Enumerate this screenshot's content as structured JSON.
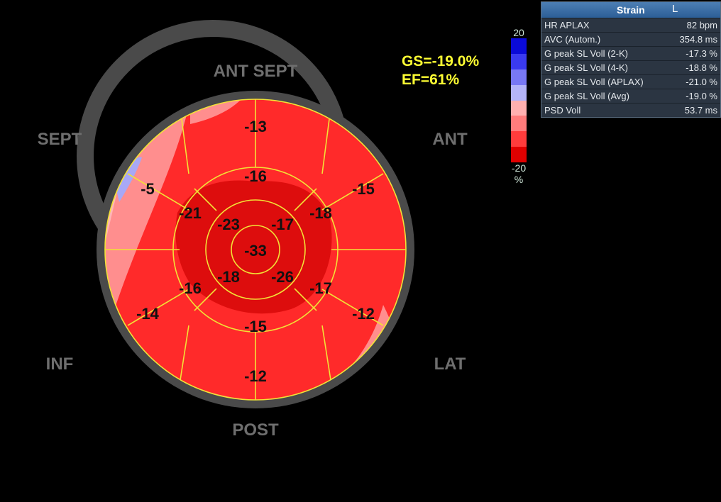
{
  "summary": {
    "gs": "GS=-19.0%",
    "ef": "EF=61%"
  },
  "scale": {
    "max_label": "20",
    "min_label": "-20",
    "unit": "%",
    "colors": [
      "#0a0ad8",
      "#3a3af0",
      "#7878f4",
      "#b4b4f8",
      "#ffb0b0",
      "#ff7c7c",
      "#ff3c3c",
      "#e00000"
    ]
  },
  "panel": {
    "title": "Strain",
    "suffix": "L",
    "rows": [
      {
        "key": "HR APLAX",
        "value": "82 bpm"
      },
      {
        "key": "AVC (Autom.)",
        "value": "354.8 ms"
      },
      {
        "key": "G peak SL Voll (2-K)",
        "value": "-17.3 %"
      },
      {
        "key": "G peak SL Voll (4-K)",
        "value": "-18.8 %"
      },
      {
        "key": "G peak SL Voll (APLAX)",
        "value": "-21.0 %"
      },
      {
        "key": "G peak SL Voll (Avg)",
        "value": "-19.0 %"
      },
      {
        "key": "PSD Voll",
        "value": "53.7 ms"
      }
    ]
  },
  "walls": {
    "ant_sept": "ANT  SEPT",
    "ant": "ANT",
    "sept": "SEPT",
    "inf": "INF",
    "lat": "LAT",
    "post": "POST"
  },
  "segments": {
    "basal": [
      "-13",
      "-15",
      "-12",
      "-12",
      "-14",
      "-5"
    ],
    "mid": [
      "-16",
      "-18",
      "-17",
      "-15",
      "-16",
      "-21"
    ],
    "apical": [
      "-23",
      "-17",
      "-26",
      "-18"
    ],
    "apex": "-33"
  }
}
